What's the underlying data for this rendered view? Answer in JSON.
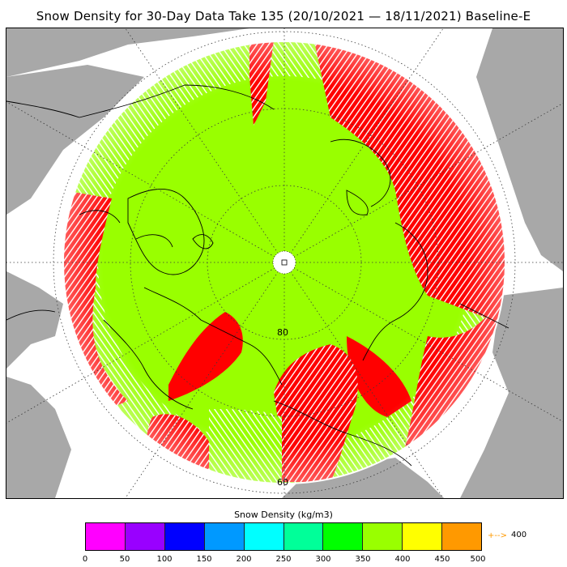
{
  "title": "Snow Density for 30-Day Data Take 135 (20/10/2021 — 18/11/2021) Baseline-E",
  "map": {
    "projection": "north-polar-stereographic",
    "lat_labels": [
      "80",
      "60"
    ],
    "colors": {
      "land": "#a8a8a8",
      "ocean": "#ffffff",
      "coast": "#000000",
      "grid": "#4a4a4a",
      "low_density": "#99ff00",
      "high_density": "#ff0000"
    }
  },
  "legend": {
    "title": "Snow Density (kg/m3)",
    "ticks": [
      "0",
      "50",
      "100",
      "150",
      "200",
      "250",
      "300",
      "350",
      "400",
      "450",
      "500"
    ],
    "colors": [
      "#ff00ff",
      "#9900ff",
      "#0000ff",
      "#0099ff",
      "#00ffff",
      "#00ff99",
      "#00ff00",
      "#99ff00",
      "#ffff00",
      "#ff9900"
    ],
    "out_of_range_arrow": "+-->",
    "out_of_range_color": "#ff9900",
    "out_of_range_value": "400"
  }
}
